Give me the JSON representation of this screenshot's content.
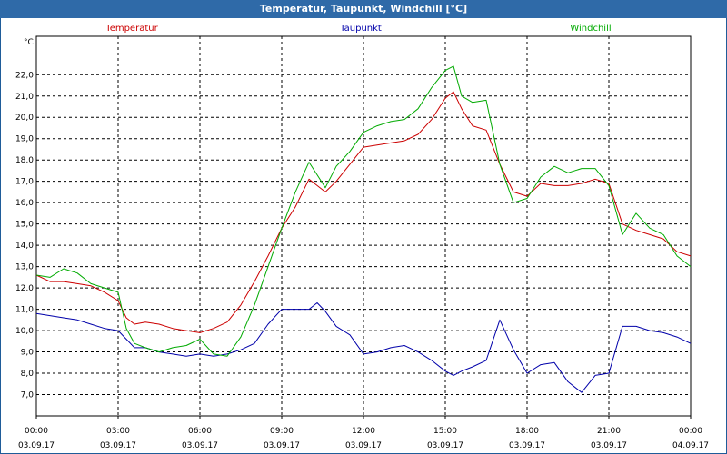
{
  "window": {
    "title": "Temperatur, Taupunkt, Windchill [°C]"
  },
  "colors": {
    "temperature": "#cc0000",
    "dewpoint": "#0000aa",
    "windchill": "#00aa00",
    "titlebar": "#2f6aa8",
    "grid": "#000000"
  },
  "chart_data": {
    "type": "line",
    "title": "Temperatur, Taupunkt, Windchill [°C]",
    "ylabel": "°C",
    "ylim": [
      6.0,
      23.8
    ],
    "xlim": [
      0,
      24
    ],
    "grid": true,
    "legend_position": "top",
    "y_ticks": [
      "22,0",
      "21,0",
      "20,0",
      "19,0",
      "18,0",
      "17,0",
      "16,0",
      "15,0",
      "14,0",
      "13,0",
      "12,0",
      "11,0",
      "10,0",
      "9,0",
      "8,0",
      "7,0"
    ],
    "y_tick_values": [
      22,
      21,
      20,
      19,
      18,
      17,
      16,
      15,
      14,
      13,
      12,
      11,
      10,
      9,
      8,
      7
    ],
    "x_ticks": [
      {
        "time": "00:00",
        "date": "03.09.17",
        "hour": 0
      },
      {
        "time": "03:00",
        "date": "03.09.17",
        "hour": 3
      },
      {
        "time": "06:00",
        "date": "03.09.17",
        "hour": 6
      },
      {
        "time": "09:00",
        "date": "03.09.17",
        "hour": 9
      },
      {
        "time": "12:00",
        "date": "03.09.17",
        "hour": 12
      },
      {
        "time": "15:00",
        "date": "03.09.17",
        "hour": 15
      },
      {
        "time": "18:00",
        "date": "03.09.17",
        "hour": 18
      },
      {
        "time": "21:00",
        "date": "03.09.17",
        "hour": 21
      },
      {
        "time": "00:00",
        "date": "04.09.17",
        "hour": 24
      }
    ],
    "series": [
      {
        "name": "Temperatur",
        "x": [
          0,
          0.5,
          1,
          1.5,
          2,
          2.5,
          3,
          3.3,
          3.6,
          4,
          4.5,
          5,
          5.5,
          6,
          6.5,
          7,
          7.5,
          8,
          8.5,
          9,
          9.5,
          10,
          10.3,
          10.6,
          11,
          11.5,
          12,
          12.5,
          13,
          13.5,
          14,
          14.5,
          15,
          15.3,
          15.6,
          16,
          16.5,
          17,
          17.5,
          18,
          18.5,
          19,
          19.5,
          20,
          20.5,
          21,
          21.5,
          22,
          22.5,
          23,
          23.5,
          24
        ],
        "values": [
          12.6,
          12.3,
          12.3,
          12.2,
          12.1,
          11.8,
          11.4,
          10.6,
          10.3,
          10.4,
          10.3,
          10.1,
          10.0,
          9.9,
          10.1,
          10.4,
          11.2,
          12.3,
          13.5,
          14.8,
          15.8,
          17.1,
          16.8,
          16.5,
          17.0,
          17.8,
          18.6,
          18.7,
          18.8,
          18.9,
          19.2,
          19.9,
          20.9,
          21.2,
          20.4,
          19.6,
          19.4,
          17.8,
          16.5,
          16.3,
          16.9,
          16.8,
          16.8,
          16.9,
          17.1,
          16.9,
          15.0,
          14.7,
          14.5,
          14.3,
          13.7,
          13.5
        ]
      },
      {
        "name": "Taupunkt",
        "x": [
          0,
          0.5,
          1,
          1.5,
          2,
          2.5,
          3,
          3.3,
          3.6,
          4,
          4.5,
          5,
          5.5,
          6,
          6.5,
          7,
          7.5,
          8,
          8.5,
          9,
          9.5,
          10,
          10.3,
          10.6,
          11,
          11.5,
          12,
          12.5,
          13,
          13.5,
          14,
          14.5,
          15,
          15.3,
          15.6,
          16,
          16.5,
          17,
          17.5,
          18,
          18.5,
          19,
          19.5,
          20,
          20.5,
          21,
          21.5,
          22,
          22.5,
          23,
          23.5,
          24
        ],
        "values": [
          10.8,
          10.7,
          10.6,
          10.5,
          10.3,
          10.1,
          10.0,
          9.6,
          9.2,
          9.2,
          9.0,
          8.9,
          8.8,
          8.9,
          8.8,
          8.9,
          9.1,
          9.4,
          10.3,
          11.0,
          11.0,
          11.0,
          11.3,
          10.9,
          10.2,
          9.8,
          8.9,
          9.0,
          9.2,
          9.3,
          9.0,
          8.6,
          8.1,
          7.9,
          8.1,
          8.3,
          8.6,
          10.5,
          9.1,
          8.0,
          8.4,
          8.5,
          7.6,
          7.1,
          7.9,
          8.0,
          10.2,
          10.2,
          10.0,
          9.9,
          9.7,
          9.4
        ]
      },
      {
        "name": "Windchill",
        "x": [
          0,
          0.5,
          1,
          1.5,
          2,
          2.5,
          3,
          3.3,
          3.6,
          4,
          4.5,
          5,
          5.5,
          6,
          6.5,
          7,
          7.5,
          8,
          8.5,
          9,
          9.5,
          10,
          10.3,
          10.6,
          11,
          11.5,
          12,
          12.5,
          13,
          13.5,
          14,
          14.5,
          15,
          15.3,
          15.6,
          16,
          16.5,
          17,
          17.5,
          18,
          18.5,
          19,
          19.5,
          20,
          20.5,
          21,
          21.5,
          22,
          22.5,
          23,
          23.5,
          24
        ],
        "values": [
          12.6,
          12.5,
          12.9,
          12.7,
          12.2,
          12.0,
          11.8,
          10.1,
          9.4,
          9.2,
          9.0,
          9.2,
          9.3,
          9.6,
          8.9,
          8.8,
          9.7,
          11.2,
          13.0,
          14.8,
          16.5,
          17.9,
          17.3,
          16.7,
          17.7,
          18.4,
          19.3,
          19.6,
          19.8,
          19.9,
          20.4,
          21.4,
          22.2,
          22.4,
          21.0,
          20.7,
          20.8,
          17.8,
          16.0,
          16.2,
          17.2,
          17.7,
          17.4,
          17.6,
          17.6,
          16.8,
          14.5,
          15.5,
          14.8,
          14.5,
          13.5,
          13.0
        ]
      }
    ]
  }
}
